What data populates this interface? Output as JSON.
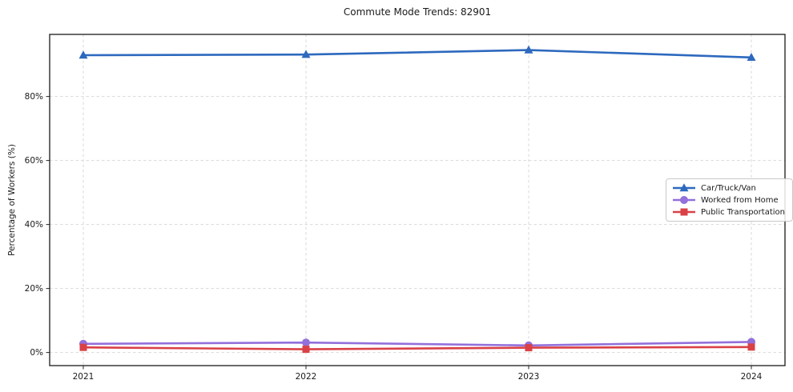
{
  "figure": {
    "background": "#ffffff",
    "text_color": "#1a1a1a",
    "grid_color": "#d9d9d9"
  },
  "chart_data": {
    "type": "line",
    "title": "Commute Mode Trends: 82901",
    "xlabel": "",
    "ylabel": "Percentage of Workers (%)",
    "x": [
      "2021",
      "2022",
      "2023",
      "2024"
    ],
    "ytick_labels": [
      "0%",
      "20%",
      "40%",
      "60%",
      "80%"
    ],
    "ytick_values": [
      0,
      20,
      40,
      60,
      80
    ],
    "ylim": [
      -4.1,
      99.4
    ],
    "grid": "dashed, both axes",
    "legend_position": "center right",
    "series": [
      {
        "name": "Car/Truck/Van",
        "marker": "triangle",
        "color": "#2d69be",
        "values": [
          92.9,
          93.1,
          94.5,
          92.2
        ]
      },
      {
        "name": "Worked from Home",
        "marker": "circle",
        "color": "#9370db",
        "values": [
          2.7,
          3.1,
          2.2,
          3.3
        ]
      },
      {
        "name": "Public Transportation",
        "marker": "square",
        "color": "#d94146",
        "values": [
          1.6,
          1.0,
          1.5,
          1.7
        ]
      }
    ]
  }
}
